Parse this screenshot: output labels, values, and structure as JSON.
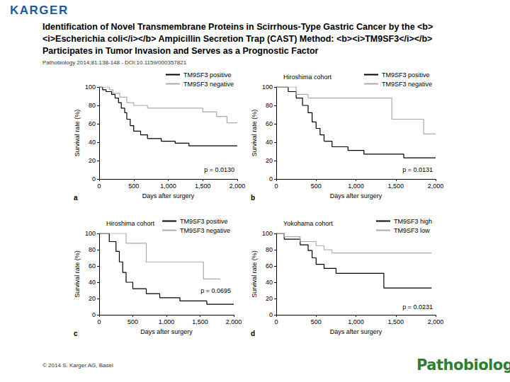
{
  "header": {
    "logo": "KARGER",
    "title": "Identification of Novel Transmembrane Proteins in Scirrhous-Type Gastric Cancer by the <b><i>Escherichia coli</i></b> Ampicillin Secretion Trap (CAST) Method: <b><i>TM9SF3</i></b> Participates in Tumor Invasion and Serves as a Prognostic Factor",
    "citation": "Pathobiology 2014;81:138-148 - DOI:10.1159/000357821"
  },
  "footer": {
    "copyright": "© 2014 S. Karger AG, Basel",
    "journal": "Pathobiology"
  },
  "chart_data": [
    {
      "type": "line",
      "line_style": "steps",
      "panel_label": "a",
      "x_label": "Days after surgery",
      "y_label": "Survival rate (%)",
      "annotation": "p = 0.0130",
      "legend": "upper right",
      "grid": false,
      "xlim": [
        0,
        2000
      ],
      "xticks": [
        0,
        500,
        {
          "value": 1000,
          "label": "1,000"
        },
        {
          "value": 1500,
          "label": "1,500"
        },
        {
          "value": 2000,
          "label": "2,000"
        }
      ],
      "ylim": [
        0,
        100
      ],
      "yticks": [
        0,
        20,
        40,
        60,
        80,
        100
      ],
      "series": [
        {
          "name": "TM9SF3 positive",
          "color": "#000000",
          "x": [
            0,
            50,
            100,
            180,
            230,
            280,
            320,
            370,
            400,
            450,
            500,
            600,
            700,
            900,
            1100,
            1300,
            2000
          ],
          "values": [
            100,
            97,
            95,
            92,
            88,
            83,
            77,
            72,
            65,
            58,
            52,
            48,
            44,
            41,
            39,
            36,
            36
          ]
        },
        {
          "name": "TM9SF3 negative",
          "color": "#aaaaaa",
          "x": [
            0,
            150,
            200,
            300,
            400,
            500,
            700,
            1500,
            1700,
            1850,
            2000
          ],
          "values": [
            100,
            97,
            93,
            89,
            83,
            80,
            77,
            73,
            68,
            61,
            61
          ]
        }
      ]
    },
    {
      "type": "line",
      "line_style": "steps",
      "panel_label": "b",
      "title": "Hiroshima cohort",
      "x_label": "Days after surgery",
      "y_label": "Survival rate (%)",
      "annotation": "p = 0.0131",
      "legend": "upper right",
      "grid": false,
      "xlim": [
        0,
        2000
      ],
      "xticks": [
        0,
        500,
        {
          "value": 1000,
          "label": "1,000"
        },
        {
          "value": 1500,
          "label": "1,500"
        },
        {
          "value": 2000,
          "label": "2,000"
        }
      ],
      "ylim": [
        0,
        100
      ],
      "yticks": [
        0,
        20,
        40,
        60,
        80,
        100
      ],
      "series": [
        {
          "name": "TM9SF3 positive",
          "color": "#000000",
          "x": [
            0,
            150,
            250,
            330,
            400,
            450,
            500,
            550,
            600,
            700,
            900,
            1100,
            1600,
            2000
          ],
          "values": [
            100,
            95,
            88,
            80,
            72,
            62,
            55,
            48,
            41,
            35,
            31,
            27,
            23,
            23
          ]
        },
        {
          "name": "TM9SF3 negative",
          "color": "#aaaaaa",
          "x": [
            0,
            250,
            400,
            1450,
            1850,
            2000
          ],
          "values": [
            100,
            92,
            88,
            65,
            49,
            49
          ]
        }
      ]
    },
    {
      "type": "line",
      "line_style": "steps",
      "panel_label": "c",
      "title": "Hiroshima cohort",
      "x_label": "Days after surgery",
      "y_label": "Survival rate (%)",
      "annotation": "p = 0.0695",
      "legend": "upper right",
      "grid": false,
      "xlim": [
        0,
        2000
      ],
      "xticks": [
        0,
        500,
        {
          "value": 1000,
          "label": "1,000"
        },
        {
          "value": 1500,
          "label": "1,500"
        },
        {
          "value": 2000,
          "label": "2,000"
        }
      ],
      "ylim": [
        0,
        100
      ],
      "yticks": [
        0,
        20,
        40,
        60,
        80,
        100
      ],
      "series": [
        {
          "name": "TM9SF3 positive",
          "color": "#000000",
          "x": [
            0,
            150,
            250,
            300,
            350,
            400,
            500,
            700,
            900,
            1200,
            1600,
            2000
          ],
          "values": [
            100,
            90,
            78,
            65,
            52,
            40,
            32,
            26,
            21,
            17,
            13,
            13
          ]
        },
        {
          "name": "TM9SF3 negative",
          "color": "#aaaaaa",
          "x": [
            0,
            400,
            700,
            1550,
            1800
          ],
          "values": [
            100,
            88,
            65,
            44,
            44
          ]
        }
      ]
    },
    {
      "type": "line",
      "line_style": "steps",
      "panel_label": "d",
      "title": "Yokohama cohort",
      "x_label": "Days after surgery",
      "y_label": "Survival rate (%)",
      "annotation": "p = 0.0231",
      "legend": "upper right",
      "grid": false,
      "xlim": [
        0,
        2000
      ],
      "xticks": [
        0,
        500,
        {
          "value": 1000,
          "label": "1,000"
        },
        {
          "value": 1500,
          "label": "1,500"
        },
        {
          "value": 2000,
          "label": "2,000"
        }
      ],
      "ylim": [
        0,
        100
      ],
      "yticks": [
        0,
        20,
        40,
        60,
        80,
        100
      ],
      "series": [
        {
          "name": "TM9SF3 high",
          "color": "#000000",
          "x": [
            0,
            100,
            300,
            400,
            450,
            500,
            600,
            750,
            1350,
            1950
          ],
          "values": [
            100,
            93,
            86,
            79,
            70,
            62,
            57,
            51,
            33,
            33
          ]
        },
        {
          "name": "TM9SF3 low",
          "color": "#aaaaaa",
          "x": [
            0,
            100,
            300,
            500,
            600,
            700,
            1950
          ],
          "values": [
            100,
            96,
            90,
            85,
            80,
            76,
            76
          ]
        }
      ]
    }
  ]
}
